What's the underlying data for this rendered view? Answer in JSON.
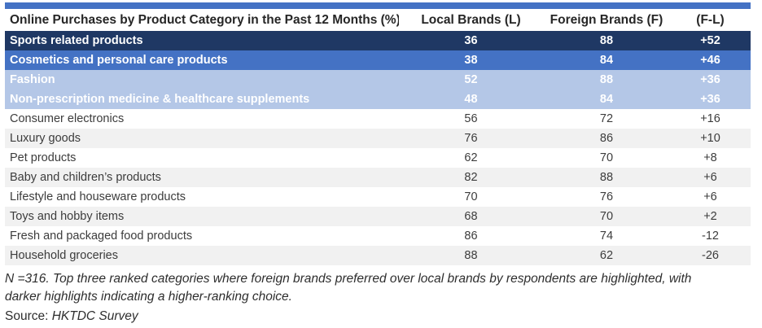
{
  "colors": {
    "top_bar": "#4472C4",
    "highlight_dark": "#1F3864",
    "highlight_medium": "#4472C4",
    "highlight_light": "#B4C7E7",
    "stripe": "#F1F1F1"
  },
  "chart_data": {
    "type": "table",
    "title": "Online Purchases by Product Category in the Past 12 Months (%)",
    "columns": [
      "Local Brands (L)",
      "Foreign Brands (F)",
      "(F-L)"
    ],
    "categories": [
      "Sports related products",
      "Cosmetics and personal care products",
      "Fashion",
      "Non-prescription medicine & healthcare supplements",
      "Consumer electronics",
      "Luxury goods",
      "Pet products",
      "Baby and children’s products",
      "Lifestyle and houseware products",
      "Toys and hobby items",
      "Fresh and packaged food products",
      "Household groceries"
    ],
    "series": [
      {
        "name": "Local Brands (L)",
        "values": [
          36,
          38,
          52,
          48,
          56,
          76,
          62,
          82,
          70,
          68,
          86,
          88
        ]
      },
      {
        "name": "Foreign Brands (F)",
        "values": [
          88,
          84,
          88,
          84,
          72,
          86,
          70,
          88,
          76,
          70,
          74,
          62
        ]
      },
      {
        "name": "(F-L)",
        "values": [
          "+52",
          "+46",
          "+36",
          "+36",
          "+16",
          "+10",
          "+8",
          "+6",
          "+6",
          "+2",
          "-12",
          "-26"
        ]
      }
    ],
    "highlights": [
      "dark",
      "medium",
      "light",
      "light",
      null,
      null,
      null,
      null,
      null,
      null,
      null,
      null
    ]
  },
  "notes": {
    "footnote": "N =316. Top three ranked categories where foreign brands preferred over local brands by respondents are highlighted, with darker highlights indicating a higher-ranking choice.",
    "source_label": "Source:",
    "source_value": "HKTDC Survey"
  }
}
